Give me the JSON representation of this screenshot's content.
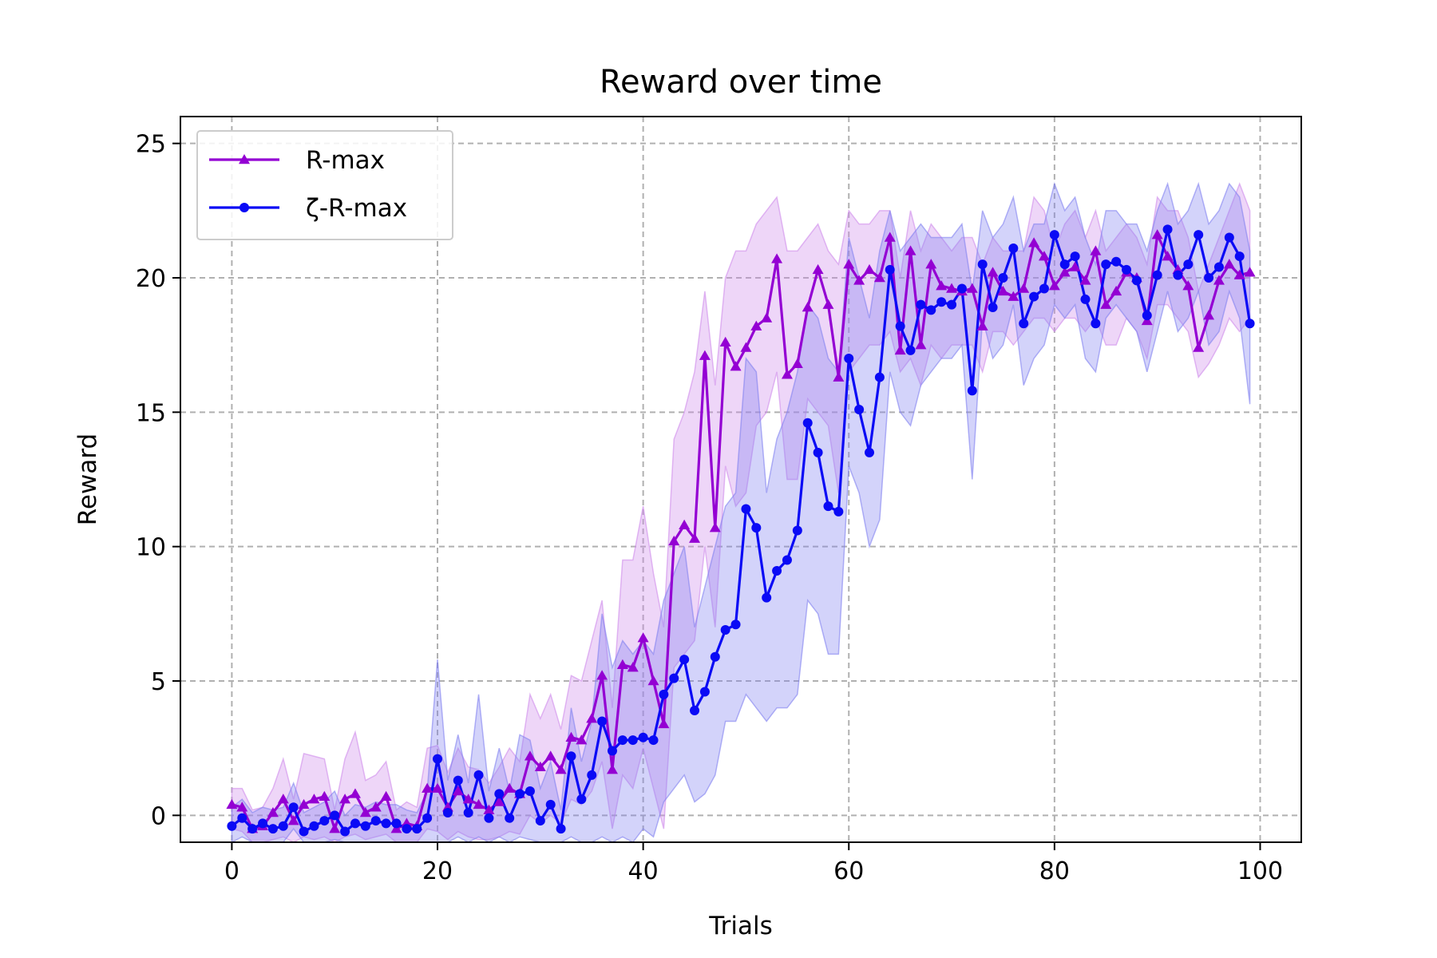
{
  "chart_data": {
    "type": "line",
    "title": "Reward over time",
    "xlabel": "Trials",
    "ylabel": "Reward",
    "xlim": [
      -5,
      104
    ],
    "ylim": [
      -1,
      26
    ],
    "xticks": [
      0,
      20,
      40,
      60,
      80,
      100
    ],
    "yticks": [
      0,
      5,
      10,
      15,
      20,
      25
    ],
    "grid": true,
    "legend_position": "top-left",
    "series": [
      {
        "name": "R-max",
        "color": "#9400d3",
        "marker": "triangle",
        "band_color": "#cf8aeb",
        "x": [
          0,
          1,
          2,
          3,
          4,
          5,
          6,
          7,
          8,
          9,
          10,
          11,
          12,
          13,
          14,
          15,
          16,
          17,
          18,
          19,
          20,
          21,
          22,
          23,
          24,
          25,
          26,
          27,
          28,
          29,
          30,
          31,
          32,
          33,
          34,
          35,
          36,
          37,
          38,
          39,
          40,
          41,
          42,
          43,
          44,
          45,
          46,
          47,
          48,
          49,
          50,
          51,
          52,
          53,
          54,
          55,
          56,
          57,
          58,
          59,
          60,
          61,
          62,
          63,
          64,
          65,
          66,
          67,
          68,
          69,
          70,
          71,
          72,
          73,
          74,
          75,
          76,
          77,
          78,
          79,
          80,
          81,
          82,
          83,
          84,
          85,
          86,
          87,
          88,
          89,
          90,
          91,
          92,
          93,
          94,
          95,
          96,
          97,
          98,
          99
        ],
        "y": [
          0.4,
          0.3,
          -0.5,
          -0.4,
          0.1,
          0.6,
          -0.2,
          0.4,
          0.6,
          0.7,
          -0.5,
          0.6,
          0.8,
          0.1,
          0.3,
          0.7,
          -0.5,
          -0.3,
          -0.4,
          1.0,
          1.0,
          0.3,
          0.9,
          0.6,
          0.4,
          0.2,
          0.5,
          1.0,
          0.8,
          2.2,
          1.8,
          2.2,
          1.7,
          2.9,
          2.8,
          3.6,
          5.2,
          1.7,
          5.6,
          5.5,
          6.6,
          5.0,
          3.4,
          10.2,
          10.8,
          10.3,
          17.1,
          10.7,
          17.6,
          16.7,
          17.4,
          18.2,
          18.5,
          20.7,
          16.4,
          16.8,
          18.9,
          20.3,
          19.0,
          16.3,
          20.5,
          19.9,
          20.3,
          20.0,
          21.5,
          17.3,
          21.0,
          17.5,
          20.5,
          19.7,
          19.6,
          19.5,
          19.6,
          18.2,
          20.2,
          19.5,
          19.3,
          19.6,
          21.3,
          20.8,
          19.7,
          20.2,
          20.4,
          19.9,
          21.0,
          19.0,
          19.5,
          20.2,
          20.0,
          18.4,
          21.6,
          20.8,
          20.3,
          19.7,
          17.4,
          18.6,
          19.9,
          20.5,
          20.1,
          20.2
        ],
        "lower": [
          -0.5,
          -0.6,
          -1.0,
          -1.0,
          -0.9,
          -0.8,
          -1.0,
          -0.8,
          -0.9,
          -0.8,
          -1.0,
          -0.8,
          -0.7,
          -0.9,
          -0.8,
          -0.7,
          -1.0,
          -1.0,
          -1.0,
          -0.5,
          -0.6,
          -0.9,
          -0.6,
          -0.8,
          -0.9,
          -0.9,
          -0.8,
          -0.6,
          -0.7,
          0.0,
          -0.3,
          0.0,
          -0.3,
          0.6,
          0.4,
          0.9,
          2.0,
          -0.5,
          1.5,
          1.0,
          2.5,
          1.0,
          -0.5,
          5.5,
          6.0,
          6.5,
          10.0,
          7.0,
          13.0,
          11.5,
          12.0,
          14.5,
          15.0,
          16.5,
          12.5,
          12.5,
          15.5,
          15.0,
          14.5,
          12.0,
          16.5,
          17.0,
          17.5,
          17.5,
          18.0,
          16.5,
          17.0,
          16.0,
          17.5,
          17.0,
          17.5,
          17.5,
          17.5,
          16.5,
          18.0,
          18.0,
          17.5,
          18.0,
          18.5,
          18.5,
          18.0,
          18.5,
          18.5,
          18.0,
          18.5,
          17.5,
          17.5,
          18.5,
          18.0,
          17.0,
          19.0,
          19.0,
          18.5,
          18.0,
          16.3,
          16.8,
          17.5,
          18.5,
          18.0,
          18.5
        ],
        "upper": [
          1.0,
          1.0,
          0.2,
          0.3,
          1.0,
          2.1,
          0.6,
          2.3,
          2.2,
          2.1,
          0.2,
          2.1,
          3.1,
          1.3,
          1.5,
          2.0,
          0.2,
          0.5,
          0.3,
          2.5,
          2.6,
          1.6,
          2.5,
          1.8,
          1.7,
          1.2,
          1.8,
          2.5,
          2.0,
          4.5,
          3.6,
          4.5,
          3.2,
          5.2,
          5.0,
          6.5,
          8.0,
          4.0,
          9.5,
          9.5,
          11.5,
          9.0,
          7.0,
          14.0,
          15.0,
          16.5,
          19.5,
          16.0,
          20.0,
          21.0,
          21.0,
          22.0,
          22.5,
          23.0,
          21.0,
          21.0,
          21.5,
          22.0,
          21.0,
          20.5,
          22.5,
          22.0,
          22.0,
          22.5,
          22.5,
          20.0,
          22.5,
          21.0,
          22.0,
          21.5,
          21.0,
          21.5,
          21.5,
          20.5,
          21.5,
          21.0,
          21.0,
          21.0,
          23.0,
          22.5,
          21.0,
          22.0,
          22.5,
          21.5,
          22.5,
          21.0,
          21.5,
          22.0,
          21.5,
          20.5,
          23.0,
          22.5,
          22.5,
          21.5,
          19.5,
          20.5,
          21.5,
          22.5,
          23.5,
          22.5
        ]
      },
      {
        "name": "ζ-R-max",
        "color": "#0a0af5",
        "marker": "circle",
        "band_color": "#8080f0",
        "x": [
          0,
          1,
          2,
          3,
          4,
          5,
          6,
          7,
          8,
          9,
          10,
          11,
          12,
          13,
          14,
          15,
          16,
          17,
          18,
          19,
          20,
          21,
          22,
          23,
          24,
          25,
          26,
          27,
          28,
          29,
          30,
          31,
          32,
          33,
          34,
          35,
          36,
          37,
          38,
          39,
          40,
          41,
          42,
          43,
          44,
          45,
          46,
          47,
          48,
          49,
          50,
          51,
          52,
          53,
          54,
          55,
          56,
          57,
          58,
          59,
          60,
          61,
          62,
          63,
          64,
          65,
          66,
          67,
          68,
          69,
          70,
          71,
          72,
          73,
          74,
          75,
          76,
          77,
          78,
          79,
          80,
          81,
          82,
          83,
          84,
          85,
          86,
          87,
          88,
          89,
          90,
          91,
          92,
          93,
          94,
          95,
          96,
          97,
          98,
          99
        ],
        "y": [
          -0.4,
          -0.1,
          -0.5,
          -0.3,
          -0.5,
          -0.4,
          0.3,
          -0.6,
          -0.4,
          -0.2,
          0.0,
          -0.6,
          -0.3,
          -0.4,
          -0.2,
          -0.3,
          -0.3,
          -0.5,
          -0.5,
          -0.1,
          2.1,
          0.1,
          1.3,
          0.1,
          1.5,
          -0.1,
          0.8,
          -0.1,
          0.8,
          0.9,
          -0.2,
          0.4,
          -0.5,
          2.2,
          0.6,
          1.5,
          3.5,
          2.4,
          2.8,
          2.8,
          2.9,
          2.8,
          4.5,
          5.1,
          5.8,
          3.9,
          4.6,
          5.9,
          6.9,
          7.1,
          11.4,
          10.7,
          8.1,
          9.1,
          9.5,
          10.6,
          14.6,
          13.5,
          11.5,
          11.3,
          17.0,
          15.1,
          13.5,
          16.3,
          20.3,
          18.2,
          17.3,
          19.0,
          18.8,
          19.1,
          19.0,
          19.6,
          15.8,
          20.5,
          18.9,
          20.0,
          21.1,
          18.3,
          19.3,
          19.6,
          21.6,
          20.5,
          20.8,
          19.2,
          18.3,
          20.5,
          20.6,
          20.3,
          19.9,
          18.6,
          20.1,
          21.8,
          20.1,
          20.5,
          21.6,
          20.0,
          20.4,
          21.5,
          20.8,
          18.3
        ],
        "lower": [
          -1.0,
          -0.8,
          -1.0,
          -1.0,
          -1.0,
          -1.0,
          -0.5,
          -1.0,
          -1.0,
          -1.0,
          -0.9,
          -1.0,
          -1.0,
          -1.0,
          -1.0,
          -1.0,
          -1.0,
          -1.0,
          -1.0,
          -1.0,
          -1.0,
          -1.0,
          -0.8,
          -1.0,
          -0.8,
          -1.0,
          -0.8,
          -1.0,
          -0.8,
          -0.9,
          -1.0,
          -1.0,
          -1.0,
          -0.8,
          -1.0,
          -1.0,
          -0.8,
          -1.0,
          -0.8,
          -1.0,
          -0.5,
          -0.8,
          0.5,
          1.0,
          1.5,
          0.5,
          0.8,
          1.5,
          3.5,
          3.5,
          4.5,
          4.0,
          3.5,
          4.0,
          4.0,
          4.5,
          8.0,
          7.5,
          6.0,
          6.0,
          13.0,
          12.0,
          10.0,
          11.0,
          16.5,
          15.0,
          14.5,
          16.0,
          16.5,
          17.0,
          17.0,
          17.5,
          12.5,
          18.5,
          17.0,
          17.5,
          19.0,
          16.0,
          17.0,
          17.5,
          19.0,
          18.5,
          19.0,
          17.0,
          16.5,
          18.5,
          19.0,
          18.5,
          18.0,
          16.5,
          18.0,
          19.5,
          18.0,
          18.5,
          19.5,
          17.5,
          18.0,
          19.5,
          18.5,
          15.3
        ],
        "upper": [
          0.3,
          0.6,
          0.1,
          0.3,
          0.2,
          0.3,
          1.2,
          0.1,
          0.3,
          0.5,
          0.9,
          0.0,
          0.4,
          0.3,
          0.5,
          0.4,
          0.4,
          0.2,
          0.1,
          0.9,
          5.8,
          1.3,
          3.0,
          1.2,
          4.5,
          0.9,
          2.5,
          0.9,
          3.0,
          2.8,
          1.0,
          2.0,
          0.2,
          4.0,
          2.0,
          3.5,
          7.5,
          5.5,
          6.5,
          6.0,
          6.5,
          6.0,
          8.0,
          9.0,
          10.0,
          7.0,
          8.5,
          10.0,
          11.5,
          12.0,
          17.0,
          16.5,
          12.0,
          14.0,
          15.0,
          16.5,
          19.0,
          18.5,
          17.0,
          16.5,
          21.5,
          20.0,
          18.5,
          21.0,
          22.5,
          21.0,
          21.5,
          22.0,
          21.5,
          21.5,
          21.5,
          22.0,
          19.5,
          22.5,
          21.5,
          22.0,
          23.0,
          21.0,
          22.0,
          22.0,
          23.5,
          22.5,
          23.0,
          21.5,
          20.5,
          22.5,
          22.5,
          22.0,
          22.0,
          21.0,
          22.5,
          23.5,
          22.0,
          22.5,
          23.5,
          22.0,
          22.5,
          23.5,
          23.0,
          21.0
        ]
      }
    ]
  }
}
